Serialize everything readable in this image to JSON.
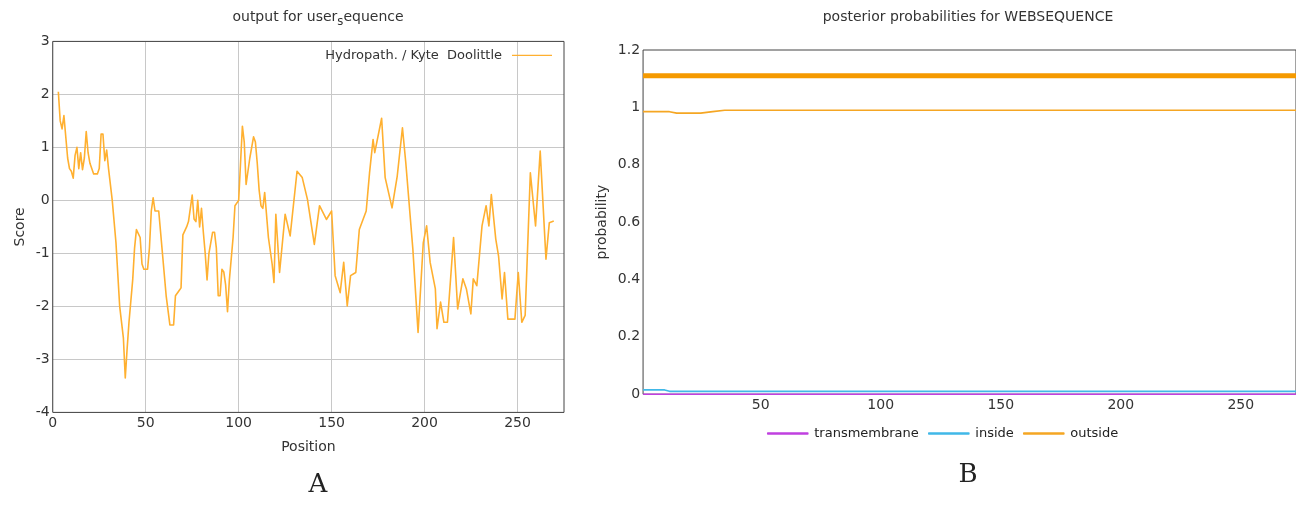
{
  "chart_data": [
    {
      "type": "line",
      "title": "output for user$_{s}$equence",
      "xlabel": "Position",
      "ylabel": "Score",
      "xlim": [
        0,
        275
      ],
      "xticks": [
        0,
        50,
        100,
        150,
        200,
        250
      ],
      "ylim": [
        -4,
        3
      ],
      "yticks": [
        -4,
        -3,
        -2,
        -1,
        0,
        1,
        2,
        3
      ],
      "grid": true,
      "legend": "top right",
      "annotations": [
        "A"
      ],
      "x": [
        3,
        4,
        5,
        6,
        7,
        8,
        9,
        10,
        11,
        12,
        13,
        14,
        15,
        16,
        17,
        18,
        19,
        20,
        22,
        24,
        25,
        26,
        27,
        28,
        29,
        30,
        32,
        34,
        36,
        38,
        39,
        40,
        41,
        43,
        44,
        45,
        47,
        48,
        49,
        51,
        52,
        53,
        54,
        55,
        57,
        59,
        61,
        63,
        65,
        66,
        68,
        69,
        70,
        72,
        73,
        74,
        75,
        76,
        77,
        78,
        79,
        80,
        81,
        82,
        83,
        84,
        86,
        87,
        88,
        89,
        90,
        91,
        92,
        93,
        94,
        95,
        97,
        98,
        100,
        101,
        102,
        103,
        104,
        106,
        108,
        109,
        110,
        111,
        112,
        113,
        114,
        116,
        118,
        119,
        120,
        122,
        125,
        127.7,
        131.4,
        134.2,
        137,
        140.7,
        143.5,
        147.2,
        150,
        151.9,
        154.6,
        156.5,
        158.4,
        160.2,
        163,
        164.9,
        168.6,
        170.4,
        172.3,
        173.2,
        176.9,
        178.8,
        182.5,
        185.3,
        188.1,
        189.9,
        193.7,
        196.5,
        199.3,
        201.1,
        203,
        205.8,
        206.7,
        208.6,
        210.4,
        212.3,
        215.6,
        217.8,
        220.6,
        222.5,
        224.9,
        226.2,
        228.1,
        230.9,
        233.1,
        234.6,
        235.9,
        238.3,
        239.8,
        241.7,
        243,
        244.8,
        248.6,
        250.4,
        252.3,
        254.1,
        256.9,
        259.7,
        262.2,
        265.3,
        267.1,
        269.5
      ],
      "series": [
        {
          "name": "Hydropath. / Kyte  Doolittle",
          "color": "#ffb030",
          "values": [
            2.05,
            1.5,
            1.35,
            1.6,
            1.2,
            0.8,
            0.6,
            0.55,
            0.42,
            0.85,
            1.0,
            0.6,
            0.9,
            0.58,
            0.8,
            1.3,
            0.9,
            0.7,
            0.5,
            0.5,
            0.6,
            1.25,
            1.25,
            0.75,
            0.95,
            0.6,
            0,
            -0.8,
            -2.0,
            -2.6,
            -3.35,
            -2.8,
            -2.3,
            -1.5,
            -0.9,
            -0.55,
            -0.7,
            -1.2,
            -1.3,
            -1.3,
            -0.9,
            -0.2,
            0.05,
            -0.2,
            -0.2,
            -1.0,
            -1.8,
            -2.35,
            -2.35,
            -1.8,
            -1.7,
            -1.65,
            -0.65,
            -0.5,
            -0.4,
            -0.15,
            0.1,
            -0.35,
            -0.4,
            0.0,
            -0.5,
            -0.15,
            -0.6,
            -1.0,
            -1.5,
            -1.0,
            -0.6,
            -0.6,
            -0.9,
            -1.8,
            -1.8,
            -1.3,
            -1.35,
            -1.6,
            -2.1,
            -1.5,
            -0.7,
            -0.1,
            0.0,
            0.7,
            1.4,
            1.1,
            0.3,
            0.8,
            1.2,
            1.1,
            0.7,
            0.2,
            -0.1,
            -0.15,
            0.15,
            -0.7,
            -1.2,
            -1.55,
            -0.26,
            -1.36,
            -0.26,
            -0.67,
            0.55,
            0.43,
            0.02,
            -0.83,
            -0.1,
            -0.36,
            -0.2,
            -1.42,
            -1.74,
            -1.17,
            -1.99,
            -1.42,
            -1.36,
            -0.55,
            -0.2,
            0.52,
            1.15,
            0.9,
            1.55,
            0.43,
            -0.14,
            0.46,
            1.37,
            0.71,
            -0.92,
            -2.49,
            -0.8,
            -0.48,
            -1.17,
            -1.67,
            -2.42,
            -1.92,
            -2.3,
            -2.3,
            -0.7,
            -2.05,
            -1.48,
            -1.67,
            -2.14,
            -1.48,
            -1.61,
            -0.48,
            -0.1,
            -0.48,
            0.11,
            -0.73,
            -1.05,
            -1.86,
            -1.36,
            -2.24,
            -2.24,
            -1.36,
            -2.3,
            -2.17,
            0.52,
            -0.48,
            0.93,
            -1.11,
            -0.42,
            -0.39
          ]
        }
      ]
    },
    {
      "type": "line",
      "title": "posterior probabilities for WEBSEQUENCE",
      "ylabel": "probability",
      "xlim": [
        1,
        273
      ],
      "xticks": [
        50,
        100,
        150,
        200,
        250
      ],
      "ylim": [
        0,
        1.2
      ],
      "yticks": [
        0,
        0.2,
        0.4,
        0.6,
        0.8,
        1,
        1.2
      ],
      "legend": "bottom",
      "annotations": [
        "B"
      ],
      "ref_lines": [
        {
          "axis": "y",
          "value": 1.11,
          "color": "#f59a00"
        }
      ],
      "series": [
        {
          "name": "transmembrane",
          "color": "#c040e0",
          "x": [
            1,
            273
          ],
          "values": [
            0,
            0
          ]
        },
        {
          "name": "inside",
          "color": "#40b8e8",
          "x": [
            1,
            10,
            12,
            273
          ],
          "values": [
            0.015,
            0.015,
            0.01,
            0.01
          ]
        },
        {
          "name": "outside",
          "color": "#f5a623",
          "x": [
            1,
            12,
            15,
            25,
            30,
            35,
            273
          ],
          "values": [
            0.985,
            0.985,
            0.98,
            0.98,
            0.985,
            0.99,
            0.99
          ]
        }
      ]
    }
  ]
}
